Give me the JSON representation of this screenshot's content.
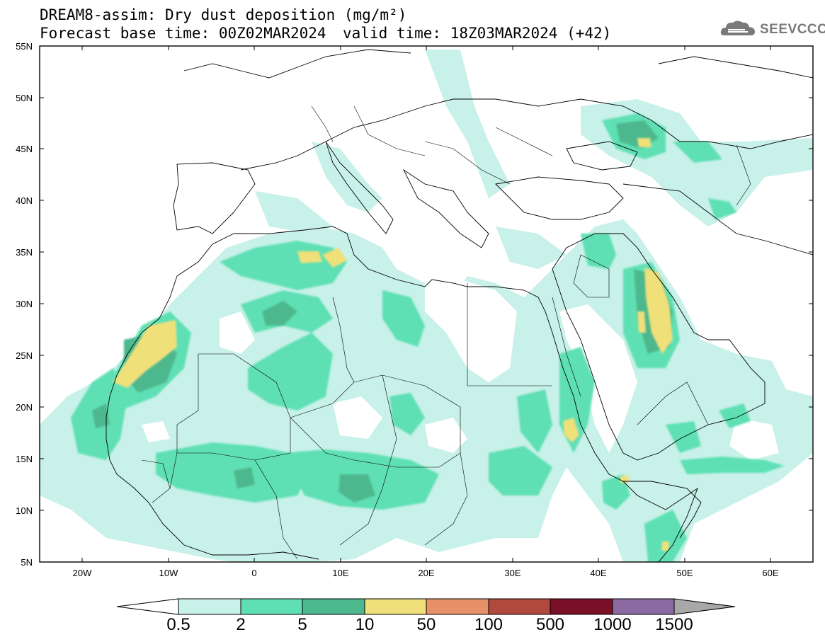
{
  "header": {
    "title_line1": "DREAM8-assim: Dry dust deposition (mg/m²)",
    "title_line2": "Forecast base time: 00Z02MAR2024",
    "valid_time": "valid time: 18Z03MAR2024 (+42)",
    "logo_text": "SEEVCCC",
    "logo_icon": "cloud-icon"
  },
  "map": {
    "projection": "lat-lon",
    "lon_range": [
      -25,
      65
    ],
    "lat_range": [
      5,
      55
    ],
    "lat_ticks": [
      "55N",
      "50N",
      "45N",
      "40N",
      "35N",
      "30N",
      "25N",
      "20N",
      "15N",
      "10N",
      "5N"
    ],
    "lon_ticks": [
      "20W",
      "10W",
      "0",
      "10E",
      "20E",
      "30E",
      "40E",
      "50E",
      "60E"
    ]
  },
  "colorbar": {
    "levels": [
      "0.5",
      "2",
      "5",
      "10",
      "50",
      "100",
      "500",
      "1000",
      "1500"
    ],
    "colors": [
      "#c8f1e9",
      "#5ee0b4",
      "#4db88e",
      "#f0e07a",
      "#e89068",
      "#b04a3c",
      "#7a1028",
      "#8a6aa0"
    ],
    "under_color": "#ffffff",
    "over_color": "#a8a8a8"
  },
  "colors": {
    "level_0_5": "#c8f1e9",
    "level_2": "#5ee0b4",
    "level_5": "#4db88e",
    "level_10": "#f0e07a",
    "level_50": "#e89068",
    "border": "#000000"
  }
}
